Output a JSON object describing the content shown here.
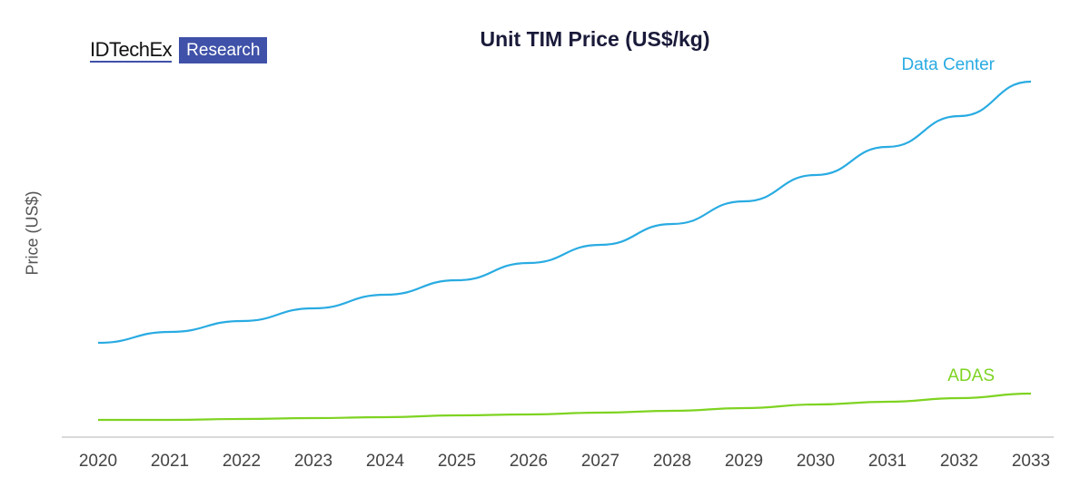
{
  "logo": {
    "text": "IDTechEx",
    "badge": "Research"
  },
  "chart_data": {
    "type": "line",
    "title": "Unit TIM Price (US$/kg)",
    "xlabel": "",
    "ylabel": "Price (US$)",
    "x": [
      2020,
      2021,
      2022,
      2023,
      2024,
      2025,
      2026,
      2027,
      2028,
      2029,
      2030,
      2031,
      2032,
      2033
    ],
    "ylim": [
      0,
      400
    ],
    "y_ticks_shown": false,
    "grid": false,
    "legend": "inline labels at line ends",
    "series": [
      {
        "name": "Data Center",
        "color": "#29ABE2",
        "values": [
          104,
          116,
          128,
          142,
          157,
          173,
          192,
          212,
          235,
          260,
          289,
          320,
          354,
          392
        ]
      },
      {
        "name": "ADAS",
        "color": "#7ED321",
        "values": [
          19,
          19,
          20,
          21,
          22,
          24,
          25,
          27,
          29,
          32,
          36,
          39,
          43,
          48
        ]
      }
    ]
  }
}
